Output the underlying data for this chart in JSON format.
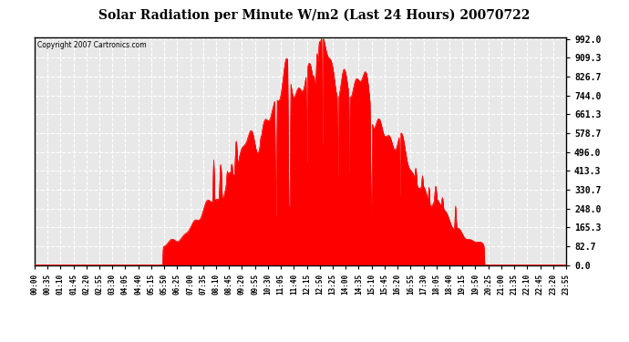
{
  "title": "Solar Radiation per Minute W/m2 (Last 24 Hours) 20070722",
  "copyright": "Copyright 2007 Cartronics.com",
  "background_color": "#ffffff",
  "plot_bg_color": "#ffffff",
  "line_color": "#ff0000",
  "fill_color": "#ff0000",
  "grid_color": "#b0b0b0",
  "yticks": [
    0.0,
    82.7,
    165.3,
    248.0,
    330.7,
    413.3,
    496.0,
    578.7,
    661.3,
    744.0,
    826.7,
    909.3,
    992.0
  ],
  "ymax": 992.0,
  "ymin": 0.0,
  "x_labels": [
    "00:00",
    "00:35",
    "01:10",
    "01:45",
    "02:20",
    "02:55",
    "03:30",
    "04:05",
    "04:40",
    "05:15",
    "05:50",
    "06:25",
    "07:00",
    "07:35",
    "08:10",
    "08:45",
    "09:20",
    "09:55",
    "10:30",
    "11:05",
    "11:40",
    "12:15",
    "12:50",
    "13:25",
    "14:00",
    "14:35",
    "15:10",
    "15:45",
    "16:20",
    "16:55",
    "17:30",
    "18:05",
    "18:40",
    "19:15",
    "19:50",
    "20:25",
    "21:00",
    "21:35",
    "22:10",
    "22:45",
    "23:20",
    "23:55"
  ]
}
